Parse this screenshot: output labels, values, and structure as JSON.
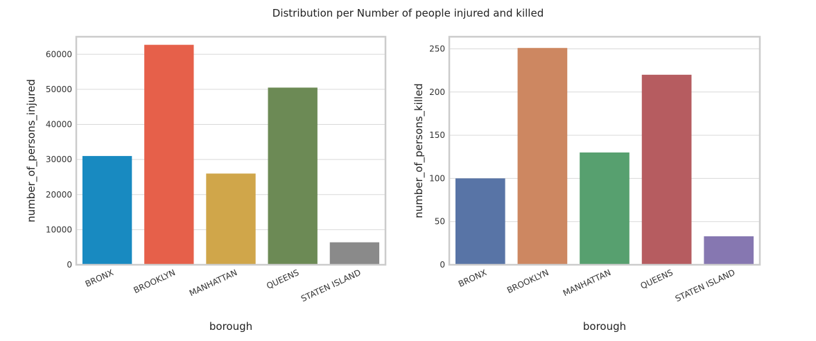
{
  "figure": {
    "suptitle": "Distribution per Number of people injured and killed"
  },
  "chart_data": [
    {
      "type": "bar",
      "title": "",
      "xlabel": "borough",
      "ylabel": "number_of_persons_injured",
      "categories": [
        "BRONX",
        "BROOKLYN",
        "MANHATTAN",
        "QUEENS",
        "STATEN ISLAND"
      ],
      "values": [
        31000,
        62700,
        26000,
        50500,
        6400
      ],
      "colors": [
        "#188ac1",
        "#e6604a",
        "#d0a64a",
        "#6c8a55",
        "#8a8a8a"
      ],
      "ylim": [
        0,
        65000
      ],
      "yticks": [
        0,
        10000,
        20000,
        30000,
        40000,
        50000,
        60000
      ],
      "grid": true
    },
    {
      "type": "bar",
      "title": "",
      "xlabel": "borough",
      "ylabel": "number_of_persons_killed",
      "categories": [
        "BRONX",
        "BROOKLYN",
        "MANHATTAN",
        "QUEENS",
        "STATEN ISLAND"
      ],
      "values": [
        100,
        251,
        130,
        220,
        33
      ],
      "colors": [
        "#5874a6",
        "#cd8761",
        "#57a06f",
        "#b65c60",
        "#8677b1"
      ],
      "ylim": [
        0,
        264
      ],
      "yticks": [
        0,
        50,
        100,
        150,
        200,
        250
      ],
      "grid": true
    }
  ]
}
